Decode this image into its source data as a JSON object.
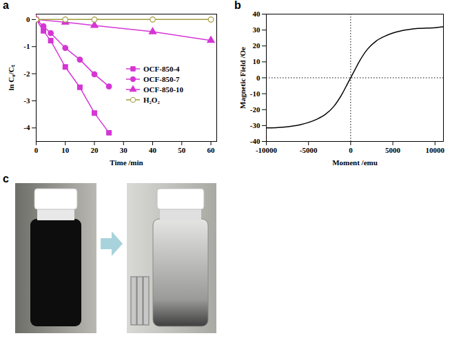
{
  "chart_data": [
    {
      "panel_label": "a",
      "type": "line",
      "x_label": "Time /min",
      "y_label": "ln C₀/Cₜ",
      "xlim": [
        0,
        62
      ],
      "xticks": [
        0,
        10,
        20,
        30,
        40,
        50,
        60
      ],
      "ylim": [
        -4.5,
        0.2
      ],
      "yticks": [
        -4,
        -3,
        -2,
        -1,
        0
      ],
      "legend": "right",
      "series": [
        {
          "name": "OCF-850-4",
          "color": "#d535d5",
          "marker": "square",
          "line_style": "solid",
          "x": [
            0,
            2.5,
            5,
            10,
            15,
            20,
            25
          ],
          "values": [
            0,
            -0.42,
            -0.78,
            -1.75,
            -2.5,
            -3.45,
            -4.18
          ]
        },
        {
          "name": "OCF-850-7",
          "color": "#d535d5",
          "marker": "circle",
          "line_style": "solid",
          "x": [
            0,
            2.5,
            5,
            10,
            15,
            20,
            25
          ],
          "values": [
            0,
            -0.25,
            -0.5,
            -1.05,
            -1.48,
            -2.02,
            -2.47
          ]
        },
        {
          "name": "OCF-850-10",
          "color": "#d535d5",
          "marker": "triangle",
          "line_style": "solid",
          "x": [
            0,
            10,
            20,
            40,
            60
          ],
          "values": [
            0,
            -0.1,
            -0.22,
            -0.45,
            -0.77
          ]
        },
        {
          "name": "H₂O₂",
          "color": "#a09a3c",
          "marker": "circle-open",
          "line_style": "solid",
          "x": [
            0,
            10,
            20,
            40,
            60
          ],
          "values": [
            0,
            0,
            0,
            0,
            0
          ]
        }
      ]
    },
    {
      "panel_label": "b",
      "type": "line",
      "x_label": "Moment /emu",
      "y_label": "Magnetic Field /Oe",
      "xlim": [
        -10000,
        11000
      ],
      "xticks": [
        -10000,
        -5000,
        0,
        5000,
        10000
      ],
      "ylim": [
        -40,
        40
      ],
      "yticks": [
        -40,
        -30,
        -20,
        -10,
        0,
        10,
        20,
        30,
        40
      ],
      "color": "#000000",
      "line_style": "solid",
      "x": [
        -10000,
        -8000,
        -6000,
        -4000,
        -3000,
        -2000,
        -1000,
        -500,
        0,
        500,
        1000,
        2000,
        3000,
        4000,
        6000,
        8000,
        10000,
        11000
      ],
      "values": [
        -31.5,
        -31,
        -29.5,
        -26,
        -23,
        -18,
        -10,
        -5,
        0,
        5,
        10,
        18,
        23,
        26,
        29.5,
        31,
        31.5,
        32
      ]
    }
  ],
  "photo_panel": {
    "panel_label": "c"
  }
}
